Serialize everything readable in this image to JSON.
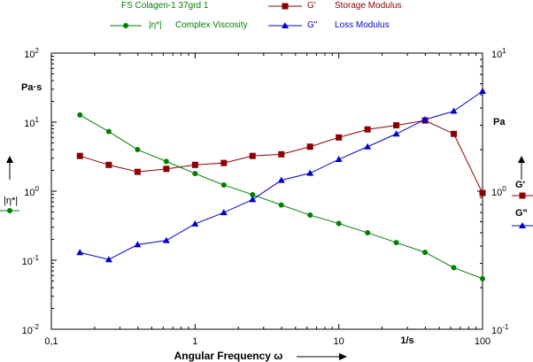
{
  "chart_data": {
    "type": "line",
    "title": "FS Colagen-1 37grd 1",
    "xlabel": "Angular Frequency ω",
    "x_unit": "1/s",
    "left_axis": {
      "unit": "Pa·s",
      "label": "|η*|",
      "scale": "log",
      "ylim": [
        0.01,
        100
      ],
      "ticks": [
        {
          "value": 100,
          "base": "10",
          "exp": "2"
        },
        {
          "value": 10,
          "base": "10",
          "exp": "1"
        },
        {
          "value": 1,
          "base": "10",
          "exp": "0"
        },
        {
          "value": 0.1,
          "base": "10",
          "exp": "-1"
        },
        {
          "value": 0.01,
          "base": "10",
          "exp": "-2"
        }
      ]
    },
    "right_axis": {
      "unit": "Pa",
      "labels": [
        "G'",
        "G\""
      ],
      "scale": "log",
      "ylim": [
        0.1,
        10
      ],
      "ticks": [
        {
          "value": 10,
          "base": "10",
          "exp": "1"
        },
        {
          "value": 1,
          "base": "10",
          "exp": "0"
        },
        {
          "value": 0.1,
          "base": "10",
          "exp": "-1"
        }
      ]
    },
    "x_axis": {
      "scale": "log",
      "xlim": [
        0.1,
        100
      ],
      "ticks": [
        {
          "value": 0.1,
          "label": "0,1"
        },
        {
          "value": 1,
          "label": "1"
        },
        {
          "value": 10,
          "label": "10"
        },
        {
          "value": 100,
          "label": "100"
        }
      ]
    },
    "grid": false,
    "series": [
      {
        "name": "Complex Viscosity",
        "symbol": "|η*|",
        "axis": "left",
        "marker": "circle",
        "color": "#008000",
        "x": [
          0.158,
          0.251,
          0.398,
          0.631,
          1.0,
          1.585,
          2.512,
          3.981,
          6.31,
          10.0,
          15.85,
          25.12,
          39.81,
          63.1,
          100.0
        ],
        "y": [
          12.7,
          7.3,
          4.0,
          2.7,
          1.8,
          1.23,
          0.89,
          0.63,
          0.45,
          0.34,
          0.25,
          0.18,
          0.13,
          0.078,
          0.054
        ]
      },
      {
        "name": "Storage Modulus",
        "symbol": "G'",
        "axis": "right",
        "marker": "square",
        "color": "#8b0000",
        "x": [
          0.158,
          0.251,
          0.398,
          0.631,
          1.0,
          1.585,
          2.512,
          3.981,
          6.31,
          10.0,
          15.85,
          25.12,
          39.81,
          63.1,
          100.0
        ],
        "y": [
          1.8,
          1.55,
          1.38,
          1.45,
          1.55,
          1.6,
          1.8,
          1.85,
          2.1,
          2.45,
          2.8,
          3.0,
          3.25,
          2.6,
          0.97
        ]
      },
      {
        "name": "Loss Modulus",
        "symbol": "G\"",
        "axis": "right",
        "marker": "triangle",
        "color": "#0000cc",
        "x": [
          0.158,
          0.251,
          0.398,
          0.631,
          1.0,
          1.585,
          2.512,
          3.981,
          6.31,
          10.0,
          15.85,
          25.12,
          39.81,
          63.1,
          100.0
        ],
        "y": [
          0.36,
          0.32,
          0.41,
          0.44,
          0.58,
          0.7,
          0.87,
          1.2,
          1.35,
          1.7,
          2.1,
          2.6,
          3.3,
          3.8,
          5.3
        ]
      }
    ]
  }
}
